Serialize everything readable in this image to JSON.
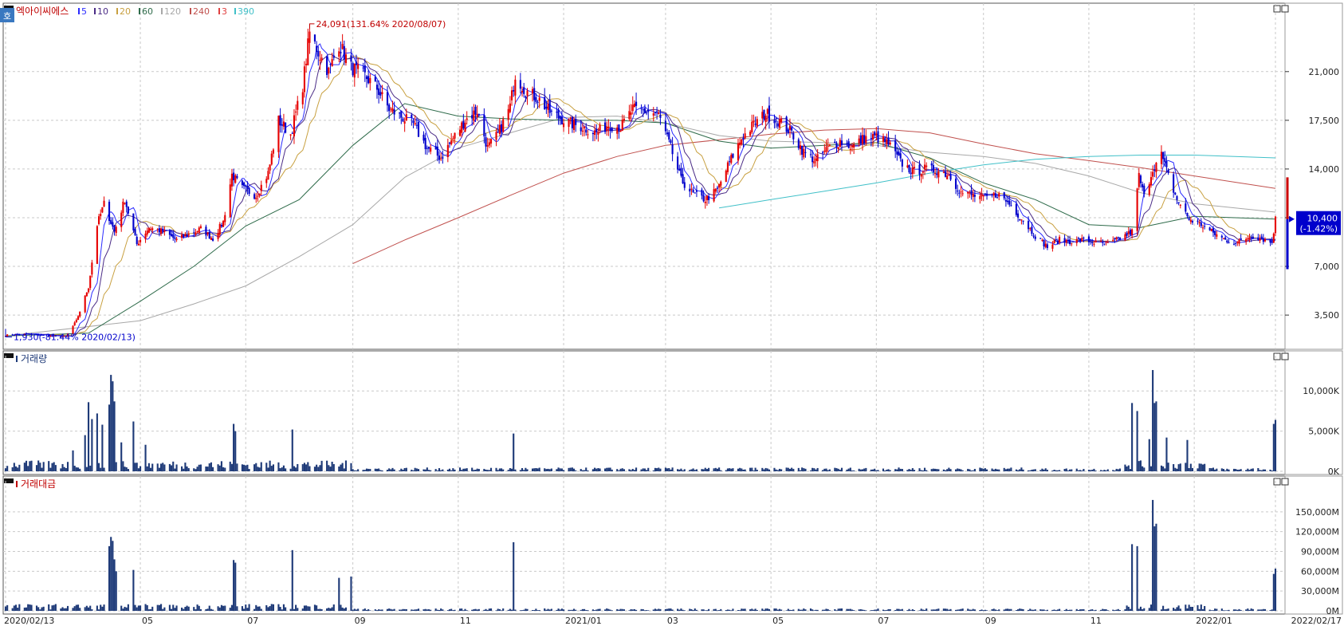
{
  "colors": {
    "up": "#e60000",
    "down": "#0000cc",
    "ma5": "#2b2bff",
    "ma10": "#4a2b86",
    "ma20": "#c8a040",
    "ma60": "#2e6b4a",
    "ma120": "#a8a8a8",
    "ma240": "#c0504d",
    "ma3": "#e04040",
    "ma390": "#40c0c8",
    "volume": "#1e3a78",
    "grid": "#c9c9c9",
    "axis": "#333333",
    "cur_price_bg": "#0000cc"
  },
  "chart_data": [
    {
      "type": "candlestick",
      "panel": "price",
      "title": "엑아이씨에스",
      "corner_mark": "호",
      "legend": [
        {
          "label": "5",
          "color_key": "ma5"
        },
        {
          "label": "10",
          "color_key": "ma10"
        },
        {
          "label": "20",
          "color_key": "ma20"
        },
        {
          "label": "60",
          "color_key": "ma60"
        },
        {
          "label": "120",
          "color_key": "ma120"
        },
        {
          "label": "240",
          "color_key": "ma240"
        },
        {
          "label": "3",
          "color_key": "ma3"
        },
        {
          "label": "390",
          "color_key": "ma390"
        }
      ],
      "y_ticks": [
        3500,
        7000,
        10500,
        14000,
        17500,
        21000
      ],
      "y_tick_labels": [
        "3,500",
        "7,000",
        "10,500",
        "14,000",
        "17,500",
        "21,000"
      ],
      "ylim": [
        1500,
        25000
      ],
      "x_ticks": [
        {
          "date": "2020/02/13",
          "label": "2020/02/13"
        },
        {
          "date": "2020/05/01",
          "label": "05"
        },
        {
          "date": "2020/07/01",
          "label": "07"
        },
        {
          "date": "2020/09/01",
          "label": "09"
        },
        {
          "date": "2020/11/01",
          "label": "11"
        },
        {
          "date": "2021/01/01",
          "label": "2021/01"
        },
        {
          "date": "2021/03/01",
          "label": "03"
        },
        {
          "date": "2021/05/01",
          "label": "05"
        },
        {
          "date": "2021/07/01",
          "label": "07"
        },
        {
          "date": "2021/09/01",
          "label": "09"
        },
        {
          "date": "2021/11/01",
          "label": "11"
        },
        {
          "date": "2022/01/01",
          "label": "2022/01"
        },
        {
          "date": "2022/02/17",
          "label": "2022/02/17"
        }
      ],
      "price_path": [
        [
          "2020/02/13",
          2050
        ],
        [
          "2020/02/25",
          2150
        ],
        [
          "2020/03/10",
          2000
        ],
        [
          "2020/03/19",
          1950
        ],
        [
          "2020/03/25",
          3100
        ],
        [
          "2020/04/01",
          5500
        ],
        [
          "2020/04/06",
          10000
        ],
        [
          "2020/04/10",
          11500
        ],
        [
          "2020/04/16",
          9500
        ],
        [
          "2020/04/22",
          11800
        ],
        [
          "2020/04/29",
          8600
        ],
        [
          "2020/05/06",
          9800
        ],
        [
          "2020/05/14",
          9500
        ],
        [
          "2020/05/22",
          8900
        ],
        [
          "2020/05/29",
          9300
        ],
        [
          "2020/06/05",
          9700
        ],
        [
          "2020/06/12",
          9000
        ],
        [
          "2020/06/18",
          10200
        ],
        [
          "2020/06/23",
          13600
        ],
        [
          "2020/06/29",
          12600
        ],
        [
          "2020/07/07",
          12100
        ],
        [
          "2020/07/14",
          13700
        ],
        [
          "2020/07/20",
          17500
        ],
        [
          "2020/07/27",
          16500
        ],
        [
          "2020/08/03",
          20000
        ],
        [
          "2020/08/07",
          23800
        ],
        [
          "2020/08/12",
          22400
        ],
        [
          "2020/08/18",
          21000
        ],
        [
          "2020/08/24",
          23000
        ],
        [
          "2020/08/31",
          21300
        ],
        [
          "2020/09/07",
          20800
        ],
        [
          "2020/09/15",
          19800
        ],
        [
          "2020/09/22",
          18300
        ],
        [
          "2020/10/06",
          17200
        ],
        [
          "2020/10/14",
          15500
        ],
        [
          "2020/10/22",
          14800
        ],
        [
          "2020/10/29",
          16200
        ],
        [
          "2020/11/05",
          17500
        ],
        [
          "2020/11/12",
          18200
        ],
        [
          "2020/11/18",
          15500
        ],
        [
          "2020/11/24",
          16500
        ],
        [
          "2020/12/01",
          18500
        ],
        [
          "2020/12/04",
          20800
        ],
        [
          "2020/12/10",
          19600
        ],
        [
          "2020/12/17",
          19100
        ],
        [
          "2020/12/24",
          18100
        ],
        [
          "2021/01/04",
          17300
        ],
        [
          "2021/01/12",
          17000
        ],
        [
          "2021/01/20",
          16600
        ],
        [
          "2021/01/27",
          17200
        ],
        [
          "2021/02/03",
          17000
        ],
        [
          "2021/02/10",
          18300
        ],
        [
          "2021/02/19",
          18100
        ],
        [
          "2021/02/25",
          17900
        ],
        [
          "2021/03/04",
          15500
        ],
        [
          "2021/03/10",
          13200
        ],
        [
          "2021/03/17",
          12200
        ],
        [
          "2021/03/24",
          11800
        ],
        [
          "2021/03/31",
          12500
        ],
        [
          "2021/04/07",
          14500
        ],
        [
          "2021/04/14",
          16200
        ],
        [
          "2021/04/21",
          17200
        ],
        [
          "2021/04/28",
          18000
        ],
        [
          "2021/05/06",
          17400
        ],
        [
          "2021/05/13",
          16600
        ],
        [
          "2021/05/20",
          15200
        ],
        [
          "2021/05/27",
          14600
        ],
        [
          "2021/06/03",
          15500
        ],
        [
          "2021/06/10",
          16000
        ],
        [
          "2021/06/17",
          15600
        ],
        [
          "2021/06/24",
          16200
        ],
        [
          "2021/07/01",
          16300
        ],
        [
          "2021/07/08",
          15800
        ],
        [
          "2021/07/15",
          14500
        ],
        [
          "2021/07/22",
          13800
        ],
        [
          "2021/07/29",
          14000
        ],
        [
          "2021/08/05",
          13900
        ],
        [
          "2021/08/12",
          13600
        ],
        [
          "2021/08/19",
          12300
        ],
        [
          "2021/08/26",
          12100
        ],
        [
          "2021/09/02",
          11900
        ],
        [
          "2021/09/09",
          12200
        ],
        [
          "2021/09/16",
          11500
        ],
        [
          "2021/09/24",
          10300
        ],
        [
          "2021/10/01",
          9200
        ],
        [
          "2021/10/08",
          8400
        ],
        [
          "2021/10/15",
          8900
        ],
        [
          "2021/10/22",
          8800
        ],
        [
          "2021/10/29",
          8900
        ],
        [
          "2021/11/05",
          8700
        ],
        [
          "2021/11/12",
          8600
        ],
        [
          "2021/11/19",
          9000
        ],
        [
          "2021/11/26",
          9500
        ],
        [
          "2021/11/30",
          13500
        ],
        [
          "2021/12/03",
          12000
        ],
        [
          "2021/12/08",
          14000
        ],
        [
          "2021/12/13",
          15000
        ],
        [
          "2021/12/17",
          13500
        ],
        [
          "2021/12/22",
          11800
        ],
        [
          "2021/12/29",
          10400
        ],
        [
          "2022/01/05",
          10000
        ],
        [
          "2022/01/12",
          9400
        ],
        [
          "2022/01/19",
          8900
        ],
        [
          "2022/01/26",
          8700
        ],
        [
          "2022/02/03",
          9200
        ],
        [
          "2022/02/09",
          9000
        ],
        [
          "2022/02/15",
          8700
        ],
        [
          "2022/02/17",
          10400
        ]
      ],
      "moving_averages": {
        "ma60": [
          [
            "2020/02/13",
            2000
          ],
          [
            "2020/04/01",
            2200
          ],
          [
            "2020/05/01",
            4500
          ],
          [
            "2020/06/01",
            7000
          ],
          [
            "2020/07/01",
            9900
          ],
          [
            "2020/08/01",
            11800
          ],
          [
            "2020/09/01",
            15700
          ],
          [
            "2020/10/01",
            18700
          ],
          [
            "2020/11/01",
            17800
          ],
          [
            "2020/12/01",
            17600
          ],
          [
            "2021/01/01",
            17500
          ],
          [
            "2021/02/01",
            17500
          ],
          [
            "2021/03/01",
            17300
          ],
          [
            "2021/04/01",
            16000
          ],
          [
            "2021/05/01",
            15500
          ],
          [
            "2021/06/01",
            15700
          ],
          [
            "2021/07/01",
            15900
          ],
          [
            "2021/08/01",
            14800
          ],
          [
            "2021/09/01",
            13000
          ],
          [
            "2021/10/01",
            11800
          ],
          [
            "2021/11/01",
            10000
          ],
          [
            "2021/12/01",
            9800
          ],
          [
            "2022/01/01",
            10600
          ],
          [
            "2022/02/17",
            10400
          ]
        ],
        "ma120": [
          [
            "2020/02/13",
            2000
          ],
          [
            "2020/05/01",
            3100
          ],
          [
            "2020/06/01",
            4300
          ],
          [
            "2020/07/01",
            5600
          ],
          [
            "2020/08/01",
            7700
          ],
          [
            "2020/09/01",
            10000
          ],
          [
            "2020/10/01",
            13400
          ],
          [
            "2020/11/01",
            15500
          ],
          [
            "2020/12/01",
            16600
          ],
          [
            "2021/01/01",
            17700
          ],
          [
            "2021/02/01",
            17800
          ],
          [
            "2021/03/01",
            17300
          ],
          [
            "2021/04/01",
            16400
          ],
          [
            "2021/05/01",
            16000
          ],
          [
            "2021/06/01",
            15900
          ],
          [
            "2021/07/01",
            15700
          ],
          [
            "2021/08/01",
            15200
          ],
          [
            "2021/09/01",
            14900
          ],
          [
            "2021/10/01",
            14400
          ],
          [
            "2021/11/01",
            13500
          ],
          [
            "2021/12/01",
            12300
          ],
          [
            "2022/01/01",
            11500
          ],
          [
            "2022/02/17",
            10900
          ]
        ],
        "ma240": [
          [
            "2020/09/01",
            7200
          ],
          [
            "2020/10/01",
            8900
          ],
          [
            "2020/11/01",
            10500
          ],
          [
            "2020/12/01",
            12100
          ],
          [
            "2021/01/01",
            13700
          ],
          [
            "2021/02/01",
            14900
          ],
          [
            "2021/03/01",
            15700
          ],
          [
            "2021/04/01",
            16100
          ],
          [
            "2021/05/01",
            16500
          ],
          [
            "2021/06/01",
            16800
          ],
          [
            "2021/07/01",
            16900
          ],
          [
            "2021/08/01",
            16600
          ],
          [
            "2021/09/01",
            15800
          ],
          [
            "2021/10/01",
            15100
          ],
          [
            "2021/11/01",
            14600
          ],
          [
            "2021/12/01",
            14100
          ],
          [
            "2022/01/01",
            13500
          ],
          [
            "2022/02/17",
            12600
          ]
        ],
        "ma390": [
          [
            "2021/04/01",
            11200
          ],
          [
            "2021/05/01",
            11800
          ],
          [
            "2021/06/01",
            12400
          ],
          [
            "2021/07/01",
            13000
          ],
          [
            "2021/08/01",
            13700
          ],
          [
            "2021/09/01",
            14300
          ],
          [
            "2021/10/01",
            14700
          ],
          [
            "2021/11/01",
            14900
          ],
          [
            "2021/12/01",
            15000
          ],
          [
            "2022/01/01",
            15000
          ],
          [
            "2022/02/17",
            14800
          ]
        ]
      },
      "annotations": [
        {
          "date": "2020/08/07",
          "price": 24091,
          "text": "24,091(131.64% 2020/08/07)"
        },
        {
          "date": "2020/02/13",
          "price": 1930,
          "text": "1,930(-81.44% 2020/02/13)"
        }
      ],
      "current_price": {
        "value": 10400,
        "label": "10,400",
        "change": "(-1.42%)"
      }
    },
    {
      "type": "bar",
      "panel": "volume",
      "title": "거래량",
      "unit": "K",
      "y_ticks": [
        0,
        5000,
        10000
      ],
      "y_tick_labels": [
        "0K",
        "5,000K",
        "10,000K"
      ],
      "ylim": [
        0,
        13000
      ],
      "spikes": [
        [
          "2020/03/23",
          2600
        ],
        [
          "2020/03/30",
          4500
        ],
        [
          "2020/04/01",
          8600
        ],
        [
          "2020/04/03",
          6500
        ],
        [
          "2020/04/06",
          7200
        ],
        [
          "2020/04/09",
          5800
        ],
        [
          "2020/04/13",
          8300
        ],
        [
          "2020/04/14",
          12000
        ],
        [
          "2020/04/15",
          11200
        ],
        [
          "2020/04/16",
          8700
        ],
        [
          "2020/04/20",
          3600
        ],
        [
          "2020/04/27",
          6200
        ],
        [
          "2020/05/04",
          3300
        ],
        [
          "2020/06/24",
          5900
        ],
        [
          "2020/06/25",
          5000
        ],
        [
          "2020/07/28",
          5200
        ],
        [
          "2020/12/03",
          4700
        ],
        [
          "2021/11/26",
          8500
        ],
        [
          "2021/11/29",
          7500
        ],
        [
          "2021/12/06",
          4000
        ],
        [
          "2021/12/08",
          12600
        ],
        [
          "2021/12/09",
          8500
        ],
        [
          "2021/12/10",
          8700
        ],
        [
          "2021/12/16",
          4200
        ],
        [
          "2021/12/28",
          3900
        ],
        [
          "2022/02/16",
          5900
        ],
        [
          "2022/02/17",
          6400
        ]
      ]
    },
    {
      "type": "bar",
      "panel": "trading_value",
      "title": "거래대금",
      "unit": "M",
      "y_ticks": [
        0,
        30000,
        60000,
        90000,
        120000,
        150000
      ],
      "y_tick_labels": [
        "0M",
        "30,000M",
        "60,000M",
        "90,000M",
        "120,000M",
        "150,000M"
      ],
      "ylim": [
        0,
        180000
      ],
      "spikes": [
        [
          "2020/04/13",
          98000
        ],
        [
          "2020/04/14",
          112000
        ],
        [
          "2020/04/15",
          106000
        ],
        [
          "2020/04/16",
          78000
        ],
        [
          "2020/04/17",
          60000
        ],
        [
          "2020/04/27",
          62000
        ],
        [
          "2020/06/24",
          77000
        ],
        [
          "2020/06/25",
          73000
        ],
        [
          "2020/07/28",
          92000
        ],
        [
          "2020/08/24",
          50000
        ],
        [
          "2020/08/31",
          52000
        ],
        [
          "2020/12/03",
          104000
        ],
        [
          "2021/11/26",
          101000
        ],
        [
          "2021/11/29",
          98000
        ],
        [
          "2021/12/08",
          168000
        ],
        [
          "2021/12/09",
          128000
        ],
        [
          "2021/12/10",
          132000
        ],
        [
          "2022/02/16",
          56000
        ],
        [
          "2022/02/17",
          64000
        ]
      ]
    }
  ]
}
